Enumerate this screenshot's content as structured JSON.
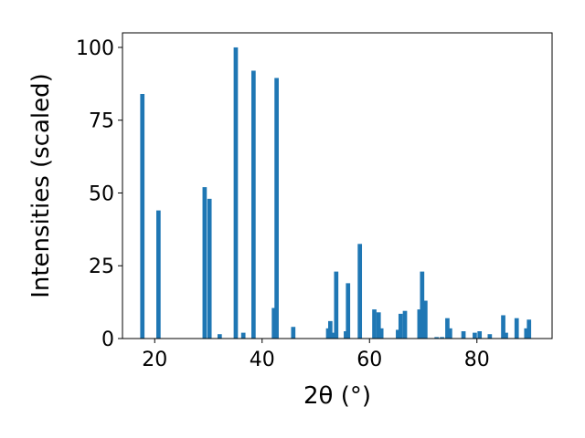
{
  "chart_data": {
    "type": "bar",
    "title": "",
    "xlabel": "2θ (°)",
    "ylabel": "Intensities (scaled)",
    "xlim": [
      14,
      94
    ],
    "ylim": [
      0,
      105
    ],
    "xticks": [
      20,
      40,
      60,
      80
    ],
    "yticks": [
      0,
      25,
      50,
      75,
      100
    ],
    "bar_width_deg": 0.8,
    "color": "#1f77b4",
    "grid": false,
    "legend": "none",
    "series": [
      {
        "x": [
          17.7,
          20.7,
          29.3,
          30.2,
          32.1,
          35.1,
          36.5,
          38.4,
          42.2,
          42.7,
          45.8,
          52.3,
          52.7,
          53.2,
          53.8,
          55.6,
          56.0,
          58.2,
          60.9,
          61.7,
          62.2,
          65.3,
          65.8,
          66.6,
          69.3,
          69.8,
          70.4,
          72.5,
          73.5,
          74.5,
          75.0,
          77.5,
          79.6,
          80.5,
          82.4,
          84.9,
          85.4,
          87.4,
          89.2,
          89.7
        ],
        "values": [
          84,
          44,
          52,
          48,
          1.5,
          100,
          2,
          92,
          10.5,
          89.5,
          4,
          3.5,
          6,
          2,
          23,
          2.5,
          19,
          32.5,
          10,
          9,
          3.5,
          3,
          8.5,
          9.5,
          10,
          23,
          13,
          0.5,
          0.5,
          7,
          3.5,
          2.5,
          2,
          2.5,
          1.5,
          8,
          2,
          7,
          3.5,
          6.5
        ]
      }
    ]
  }
}
